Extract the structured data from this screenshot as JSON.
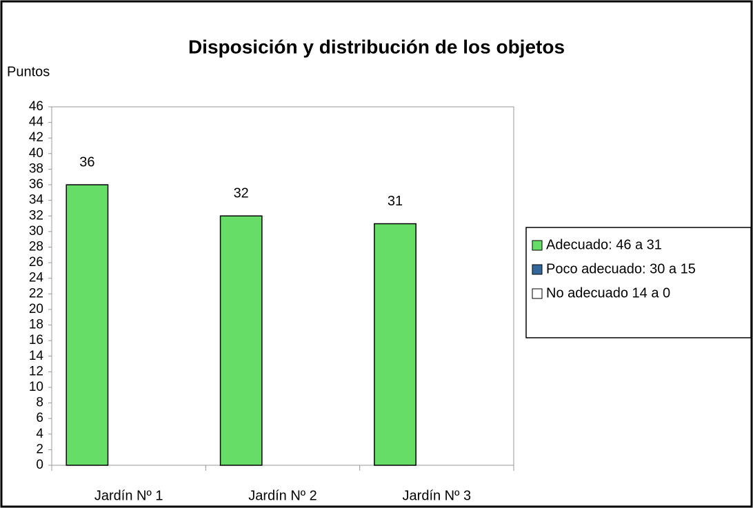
{
  "chart_data": {
    "type": "bar",
    "title": "Disposición y distribución de los objetos",
    "y_label": "Puntos",
    "categories": [
      "Jardín Nº 1",
      "Jardín Nº 2",
      "Jardín Nº 3"
    ],
    "series": [
      {
        "name": "Adecuado: 46 a 31",
        "color": "#66dd66",
        "values": [
          36,
          32,
          31
        ]
      },
      {
        "name": "Poco adecuado: 30 a 15",
        "color": "#336699",
        "values": [
          null,
          null,
          null
        ]
      },
      {
        "name": "No adecuado 14 a 0",
        "color": "#ffffff",
        "values": [
          null,
          null,
          null
        ]
      }
    ],
    "ylim": [
      0,
      46
    ],
    "yticks": [
      0,
      2,
      4,
      6,
      8,
      10,
      12,
      14,
      16,
      18,
      20,
      22,
      24,
      26,
      28,
      30,
      32,
      34,
      36,
      38,
      40,
      42,
      44,
      46
    ],
    "grid": false,
    "legend": "right"
  }
}
